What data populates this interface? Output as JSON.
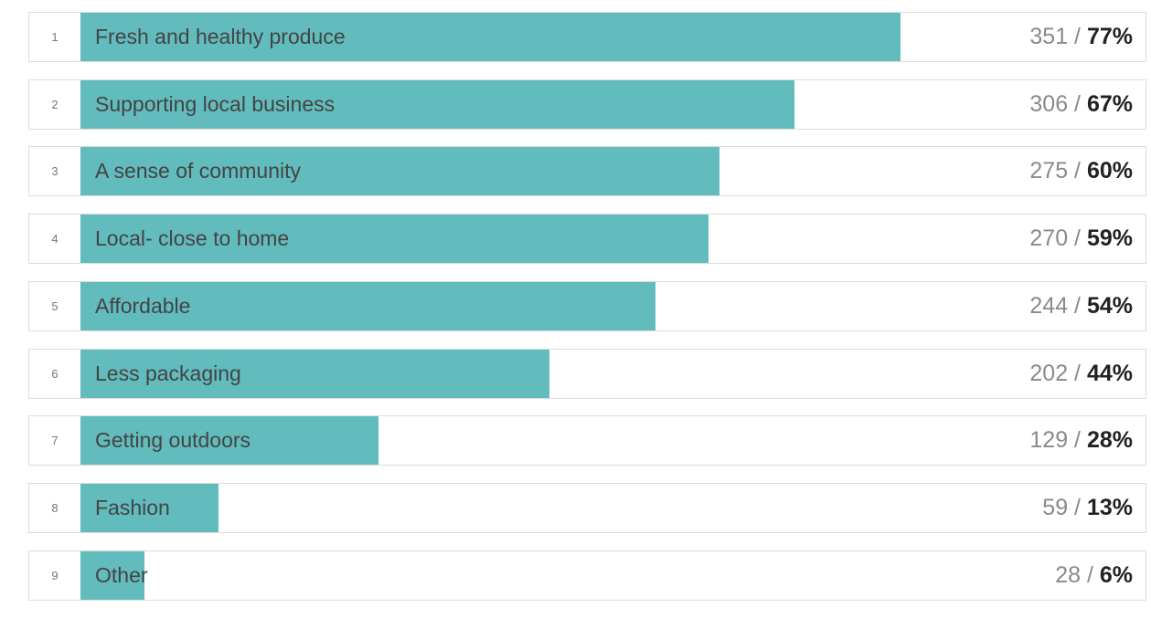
{
  "chart_data": {
    "type": "bar",
    "orientation": "horizontal",
    "bar_color": "#62bbbd",
    "grid": false,
    "legend": "none",
    "xlim": [
      0,
      100
    ],
    "items": [
      {
        "rank": "1",
        "label": "Fresh and healthy produce",
        "count": "351",
        "percent_label": "77%",
        "percent": 77
      },
      {
        "rank": "2",
        "label": "Supporting local business",
        "count": "306",
        "percent_label": "67%",
        "percent": 67
      },
      {
        "rank": "3",
        "label": "A sense of community",
        "count": "275",
        "percent_label": "60%",
        "percent": 60
      },
      {
        "rank": "4",
        "label": "Local- close to home",
        "count": "270",
        "percent_label": "59%",
        "percent": 59
      },
      {
        "rank": "5",
        "label": "Affordable",
        "count": "244",
        "percent_label": "54%",
        "percent": 54
      },
      {
        "rank": "6",
        "label": "Less packaging",
        "count": "202",
        "percent_label": "44%",
        "percent": 44
      },
      {
        "rank": "7",
        "label": "Getting outdoors",
        "count": "129",
        "percent_label": "28%",
        "percent": 28
      },
      {
        "rank": "8",
        "label": "Fashion",
        "count": "59",
        "percent_label": "13%",
        "percent": 13
      },
      {
        "rank": "9",
        "label": "Other",
        "count": "28",
        "percent_label": "6%",
        "percent": 6
      }
    ]
  }
}
